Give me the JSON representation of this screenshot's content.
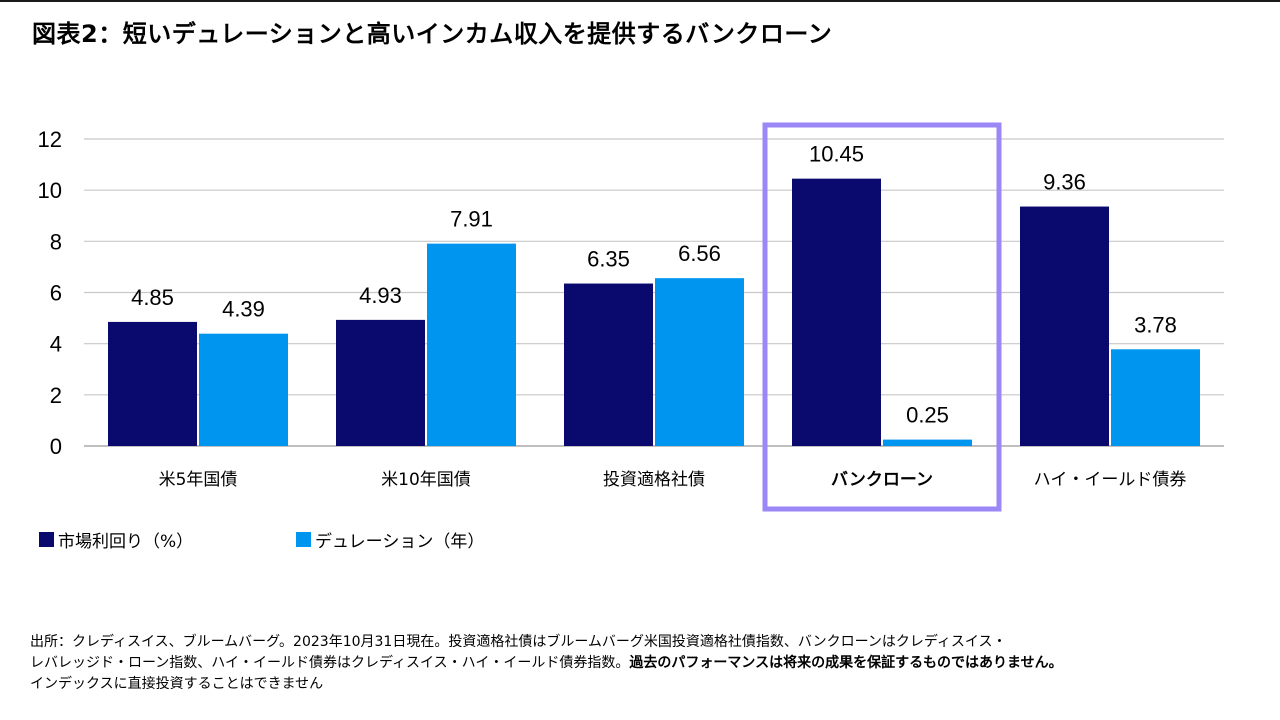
{
  "title": "図表2：短いデュレーションと高いインカム収入を提供するバンクローン",
  "chart_data": {
    "type": "bar",
    "categories": [
      "米5年国債",
      "米10年国債",
      "投資適格社債",
      "バンクローン",
      "ハイ・イールド債券"
    ],
    "highlight_category": "バンクローン",
    "series": [
      {
        "name": "市場利回り（%）",
        "values": [
          4.85,
          4.93,
          6.35,
          10.45,
          9.36
        ],
        "color": "#0a0a6e"
      },
      {
        "name": "デュレーション（年）",
        "values": [
          4.39,
          7.91,
          6.56,
          0.25,
          3.78
        ],
        "color": "#0096f0"
      }
    ],
    "data_labels": [
      [
        "4.85",
        "4.93",
        "6.35",
        "10.45",
        "9.36"
      ],
      [
        "4.39",
        "7.91",
        "6.56",
        "0.25",
        "3.78"
      ]
    ],
    "yticks": [
      "0",
      "2",
      "4",
      "6",
      "8",
      "10",
      "12"
    ],
    "ylim": [
      0,
      12
    ],
    "grid": true,
    "legend_position": "bottom-left",
    "highlight_color": "#9b87f5",
    "grid_color": "#c8c8c8"
  },
  "legend": [
    {
      "label": "市場利回り（%）",
      "color": "#0a0a6e"
    },
    {
      "label": "デュレーション（年）",
      "color": "#0096f0"
    }
  ],
  "footnote": {
    "line1": "出所：クレディスイス、ブルームバーグ。2023年10月31日現在。投資適格社債はブルームバーグ米国投資適格社債指数、バンクローンはクレディスイス・",
    "line2_normal": "レバレッジド・ローン指数、ハイ・イールド債券はクレディスイス・ハイ・イールド債券指数。",
    "line2_bold": "過去のパフォーマンスは将来の成果を保証するものではありません。",
    "line3": "インデックスに直接投資することはできません"
  }
}
